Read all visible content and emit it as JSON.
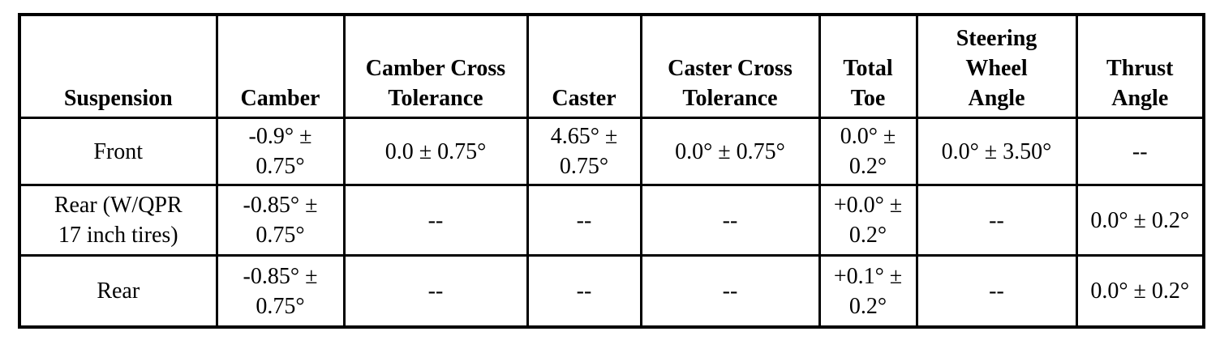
{
  "table": {
    "header": [
      "Suspension",
      "Camber",
      "Camber Cross Tolerance",
      "Caster",
      "Caster Cross Tolerance",
      "Total Toe",
      "Steering Wheel Angle",
      "Thrust Angle"
    ],
    "rows": [
      [
        "Front",
        "-0.9° ± 0.75°",
        "0.0 ± 0.75°",
        "4.65° ± 0.75°",
        "0.0° ± 0.75°",
        "0.0° ± 0.2°",
        "0.0° ± 3.50°",
        "--"
      ],
      [
        "Rear (W/QPR 17 inch tires)",
        "-0.85° ± 0.75°",
        "--",
        "--",
        "--",
        "+0.0° ± 0.2°",
        "--",
        "0.0° ± 0.2°"
      ],
      [
        "Rear",
        "-0.85° ± 0.75°",
        "--",
        "--",
        "--",
        "+0.1° ± 0.2°",
        "--",
        "0.0° ± 0.2°"
      ]
    ]
  }
}
